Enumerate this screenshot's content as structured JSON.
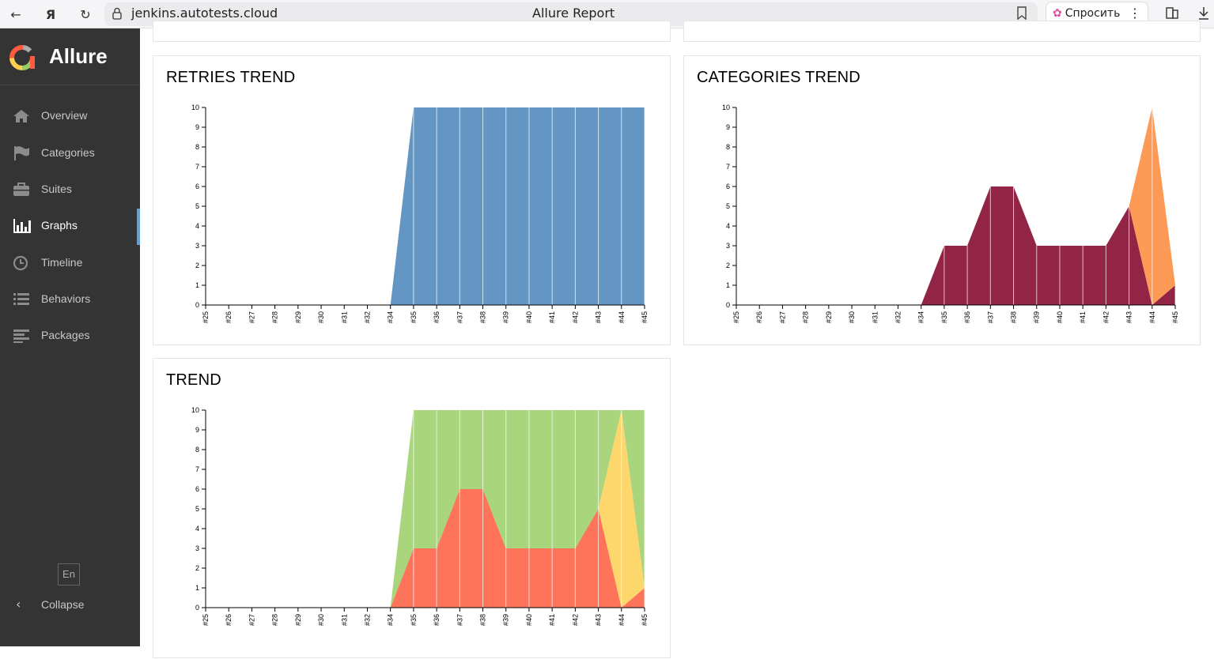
{
  "browser": {
    "url": "jenkins.autotests.cloud",
    "title": "Allure Report",
    "ask_label": "Спросить"
  },
  "sidebar": {
    "brand": "Allure",
    "items": [
      {
        "label": "Overview",
        "icon": "home-icon"
      },
      {
        "label": "Categories",
        "icon": "flag-icon"
      },
      {
        "label": "Suites",
        "icon": "briefcase-icon"
      },
      {
        "label": "Graphs",
        "icon": "bar-chart-icon"
      },
      {
        "label": "Timeline",
        "icon": "clock-icon"
      },
      {
        "label": "Behaviors",
        "icon": "list-icon"
      },
      {
        "label": "Packages",
        "icon": "align-left-icon"
      }
    ],
    "active": "Graphs",
    "lang": "En",
    "collapse_label": "Collapse"
  },
  "widgets": {
    "retries": {
      "title": "RETRIES TREND"
    },
    "categories": {
      "title": "CATEGORIES TREND"
    },
    "trend": {
      "title": "TREND"
    }
  },
  "chart_data": [
    {
      "type": "area",
      "title": "RETRIES TREND",
      "x": [
        "#25",
        "#26",
        "#27",
        "#28",
        "#29",
        "#30",
        "#31",
        "#32",
        "#34",
        "#35",
        "#36",
        "#37",
        "#38",
        "#39",
        "#40",
        "#41",
        "#42",
        "#43",
        "#44",
        "#45"
      ],
      "ylim": [
        0,
        10
      ],
      "yticks": [
        0,
        1,
        2,
        3,
        4,
        5,
        6,
        7,
        8,
        9,
        10
      ],
      "series": [
        {
          "values": [
            0,
            0,
            0,
            0,
            0,
            0,
            0,
            0,
            0,
            10,
            10,
            10,
            10,
            10,
            10,
            10,
            10,
            10,
            10,
            10
          ],
          "color": "#6396c3"
        }
      ]
    },
    {
      "type": "area",
      "title": "CATEGORIES TREND",
      "x": [
        "#25",
        "#26",
        "#27",
        "#28",
        "#29",
        "#30",
        "#31",
        "#32",
        "#34",
        "#35",
        "#36",
        "#37",
        "#38",
        "#39",
        "#40",
        "#41",
        "#42",
        "#43",
        "#44",
        "#45"
      ],
      "ylim": [
        0,
        10
      ],
      "yticks": [
        0,
        1,
        2,
        3,
        4,
        5,
        6,
        7,
        8,
        9,
        10
      ],
      "series": [
        {
          "values": [
            0,
            0,
            0,
            0,
            0,
            0,
            0,
            0,
            0,
            3,
            3,
            6,
            6,
            3,
            3,
            3,
            3,
            5,
            0,
            1
          ],
          "color": "#922545"
        },
        {
          "values": [
            0,
            0,
            0,
            0,
            0,
            0,
            0,
            0,
            0,
            0,
            0,
            0,
            0,
            0,
            0,
            0,
            0,
            0,
            10,
            0
          ],
          "color": "#fd9b56"
        }
      ]
    },
    {
      "type": "area",
      "title": "TREND",
      "x": [
        "#25",
        "#26",
        "#27",
        "#28",
        "#29",
        "#30",
        "#31",
        "#32",
        "#34",
        "#35",
        "#36",
        "#37",
        "#38",
        "#39",
        "#40",
        "#41",
        "#42",
        "#43",
        "#44",
        "#45"
      ],
      "ylim": [
        0,
        10
      ],
      "yticks": [
        0,
        1,
        2,
        3,
        4,
        5,
        6,
        7,
        8,
        9,
        10
      ],
      "series": [
        {
          "values": [
            0,
            0,
            0,
            0,
            0,
            0,
            0,
            0,
            0,
            3,
            3,
            6,
            6,
            3,
            3,
            3,
            3,
            5,
            0,
            1
          ],
          "color": "#fd745a"
        },
        {
          "values": [
            0,
            0,
            0,
            0,
            0,
            0,
            0,
            0,
            0,
            0,
            0,
            0,
            0,
            0,
            0,
            0,
            0,
            0,
            10,
            0
          ],
          "color": "#fdd66c"
        },
        {
          "values": [
            0,
            0,
            0,
            0,
            0,
            0,
            0,
            0,
            0,
            7,
            7,
            4,
            4,
            7,
            7,
            7,
            7,
            5,
            0,
            9
          ],
          "color": "#a9d57c"
        }
      ]
    }
  ]
}
